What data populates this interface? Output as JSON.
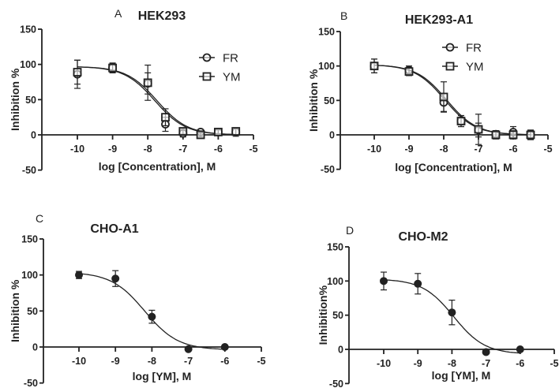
{
  "chart_data": [
    {
      "type": "scatter",
      "panel_letter": "A",
      "title": "HEK293",
      "xlabel": "log [Concentration], M",
      "ylabel": "Inhibition %",
      "xlim": [
        -11,
        -5
      ],
      "ylim": [
        -50,
        150
      ],
      "xticks": [
        -10,
        -9,
        -8,
        -7,
        -6,
        -5
      ],
      "yticks": [
        150,
        100,
        50,
        0,
        -50
      ],
      "legend": "top-right",
      "series": [
        {
          "name": "FR",
          "marker": "circle",
          "x": [
            -10,
            -9,
            -8,
            -7.5,
            -7,
            -6.5,
            -6,
            -5.5
          ],
          "y": [
            86,
            95,
            73,
            15,
            2,
            4,
            4,
            4
          ],
          "err": [
            20,
            6,
            15,
            10,
            5,
            2,
            3,
            6
          ],
          "fit": {
            "top": 97,
            "bottom": 0,
            "logIC50": -7.8,
            "hill": 1.0
          }
        },
        {
          "name": "YM",
          "marker": "square",
          "x": [
            -10,
            -9,
            -8,
            -7.5,
            -7,
            -6.5,
            -6,
            -5.5
          ],
          "y": [
            89,
            95,
            74,
            25,
            5,
            0,
            4,
            5
          ],
          "err": [
            17,
            7,
            25,
            12,
            4,
            3,
            3,
            5
          ],
          "fit": {
            "top": 97,
            "bottom": 0,
            "logIC50": -7.74,
            "hill": 1.0
          }
        }
      ]
    },
    {
      "type": "scatter",
      "panel_letter": "B",
      "title": "HEK293-A1",
      "xlabel": "log [Concentration], M",
      "ylabel": "Inhibition %",
      "xlim": [
        -11,
        -5
      ],
      "ylim": [
        -50,
        150
      ],
      "xticks": [
        -10,
        -9,
        -8,
        -7,
        -6,
        -5
      ],
      "yticks": [
        150,
        100,
        50,
        0,
        -50
      ],
      "legend": "top-right",
      "series": [
        {
          "name": "FR",
          "marker": "circle",
          "x": [
            -10,
            -9,
            -8,
            -7.5,
            -7,
            -6.5,
            -6,
            -5.5
          ],
          "y": [
            100,
            94,
            47,
            20,
            7,
            1,
            4,
            0
          ],
          "err": [
            10,
            6,
            13,
            8,
            10,
            5,
            8,
            7
          ],
          "fit": {
            "top": 102,
            "bottom": 0,
            "logIC50": -7.97,
            "hill": 1.0
          }
        },
        {
          "name": "YM",
          "marker": "square",
          "x": [
            -10,
            -9,
            -8,
            -7.5,
            -7,
            -6.5,
            -6,
            -5.5
          ],
          "y": [
            100,
            92,
            55,
            20,
            8,
            0,
            0,
            0
          ],
          "err": [
            10,
            6,
            22,
            8,
            22,
            6,
            6,
            6
          ],
          "fit": {
            "top": 102,
            "bottom": 0,
            "logIC50": -7.92,
            "hill": 1.0
          }
        }
      ]
    },
    {
      "type": "scatter",
      "panel_letter": "C",
      "title": "CHO-A1",
      "xlabel": "log [YM], M",
      "ylabel": "Inhibition %",
      "xlim": [
        -11,
        -5
      ],
      "ylim": [
        -50,
        150
      ],
      "xticks": [
        -10,
        -9,
        -8,
        -7,
        -6,
        -5
      ],
      "yticks": [
        150,
        100,
        50,
        0,
        -50
      ],
      "series": [
        {
          "name": "YM",
          "marker": "filled-circle",
          "x": [
            -10,
            -9,
            -8,
            -7,
            -6
          ],
          "y": [
            100,
            95,
            42,
            -3,
            0
          ],
          "err": [
            5,
            11,
            9,
            2,
            2
          ],
          "fit": {
            "top": 104,
            "bottom": -4,
            "logIC50": -8.2,
            "hill": 0.95
          }
        }
      ]
    },
    {
      "type": "scatter",
      "panel_letter": "D",
      "title": "CHO-M2",
      "xlabel": "log [YM], M",
      "ylabel": "Inhibition%",
      "xlim": [
        -11,
        -5
      ],
      "ylim": [
        -50,
        150
      ],
      "xticks": [
        -10,
        -9,
        -8,
        -7,
        -6,
        -5
      ],
      "yticks": [
        150,
        100,
        50,
        0,
        -50
      ],
      "series": [
        {
          "name": "YM",
          "marker": "filled-circle",
          "x": [
            -10,
            -9,
            -8,
            -7,
            -6
          ],
          "y": [
            100,
            96,
            54,
            -4,
            0
          ],
          "err": [
            13,
            15,
            18,
            2,
            2
          ],
          "fit": {
            "top": 103,
            "bottom": -7,
            "logIC50": -7.95,
            "hill": 0.95
          }
        }
      ]
    }
  ]
}
